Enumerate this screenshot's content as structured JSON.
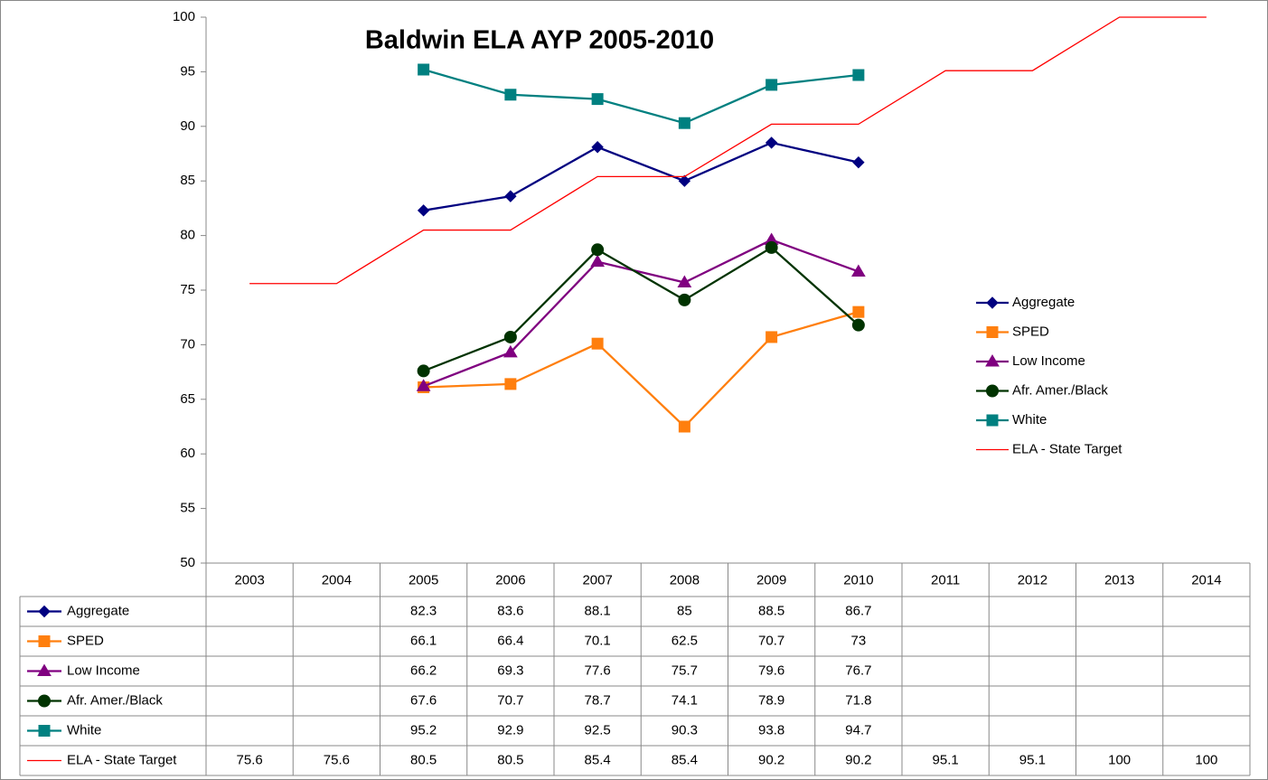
{
  "chart_data": {
    "type": "line",
    "title": "Baldwin ELA AYP 2005-2010",
    "categories": [
      "2003",
      "2004",
      "2005",
      "2006",
      "2007",
      "2008",
      "2009",
      "2010",
      "2011",
      "2012",
      "2013",
      "2014"
    ],
    "ylim": [
      50,
      100
    ],
    "yticks": [
      50,
      55,
      60,
      65,
      70,
      75,
      80,
      85,
      90,
      95,
      100
    ],
    "legend": "right",
    "series": [
      {
        "name": "Aggregate",
        "color": "#000080",
        "marker": "diamond",
        "values": [
          null,
          null,
          82.3,
          83.6,
          88.1,
          85,
          88.5,
          86.7,
          null,
          null,
          null,
          null
        ]
      },
      {
        "name": "SPED",
        "color": "#ff7f0e",
        "marker": "square",
        "values": [
          null,
          null,
          66.1,
          66.4,
          70.1,
          62.5,
          70.7,
          73,
          null,
          null,
          null,
          null
        ]
      },
      {
        "name": "Low Income",
        "color": "#800080",
        "marker": "triangle",
        "values": [
          null,
          null,
          66.2,
          69.3,
          77.6,
          75.7,
          79.6,
          76.7,
          null,
          null,
          null,
          null
        ]
      },
      {
        "name": "Afr. Amer./Black",
        "color": "#003300",
        "marker": "circle",
        "values": [
          null,
          null,
          67.6,
          70.7,
          78.7,
          74.1,
          78.9,
          71.8,
          null,
          null,
          null,
          null
        ]
      },
      {
        "name": "White",
        "color": "#008080",
        "marker": "square",
        "values": [
          null,
          null,
          95.2,
          92.9,
          92.5,
          90.3,
          93.8,
          94.7,
          null,
          null,
          null,
          null
        ]
      },
      {
        "name": "ELA - State Target",
        "color": "#ff0000",
        "marker": "none",
        "values": [
          75.6,
          75.6,
          80.5,
          80.5,
          85.4,
          85.4,
          90.2,
          90.2,
          95.1,
          95.1,
          100,
          100
        ]
      }
    ]
  }
}
